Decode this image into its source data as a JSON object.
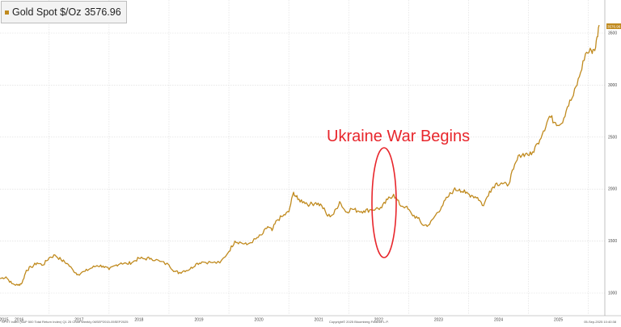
{
  "legend": {
    "name": "Gold Spot $/Oz",
    "value": "3576.96",
    "color": "#c08a1e"
  },
  "annotation": {
    "text": "Ukraine War Begins",
    "color": "#e8262c"
  },
  "footer": {
    "left": "SPXT Index (S&P 500 Total Return Index) Q1 25 Chart  Weekly 06SEP2015-05SEP2025",
    "middle": "Copyright© 2025 Bloomberg Finance L.P.",
    "right": "05-Sep-2025 10:40:38"
  },
  "chart_data": {
    "type": "line",
    "title": "",
    "xlabel": "",
    "ylabel": "",
    "x_tick_labels": [
      "2015",
      "2016",
      "2017",
      "2018",
      "2019",
      "2020",
      "2021",
      "2022",
      "2023",
      "2024",
      "2025"
    ],
    "y_tick_labels": [
      "1000",
      "1500",
      "2000",
      "2500",
      "3000",
      "3500"
    ],
    "ylim": [
      950,
      3600
    ],
    "xlim": [
      2015.68,
      2025.68
    ],
    "grid": true,
    "last_value_label": "3576.96",
    "series": [
      {
        "name": "Gold Spot $/Oz",
        "color": "#c08a1e",
        "x": [
          2015.68,
          2015.78,
          2015.88,
          2015.98,
          2016.05,
          2016.12,
          2016.2,
          2016.3,
          2016.4,
          2016.5,
          2016.6,
          2016.7,
          2016.8,
          2016.9,
          2016.98,
          2017.1,
          2017.2,
          2017.3,
          2017.4,
          2017.5,
          2017.6,
          2017.7,
          2017.8,
          2017.9,
          2018.0,
          2018.1,
          2018.2,
          2018.35,
          2018.5,
          2018.6,
          2018.67,
          2018.75,
          2018.85,
          2018.95,
          2019.05,
          2019.2,
          2019.35,
          2019.5,
          2019.6,
          2019.7,
          2019.8,
          2019.95,
          2020.05,
          2020.15,
          2020.22,
          2020.3,
          2020.4,
          2020.5,
          2020.58,
          2020.65,
          2020.75,
          2020.85,
          2020.95,
          2021.05,
          2021.15,
          2021.25,
          2021.35,
          2021.45,
          2021.55,
          2021.65,
          2021.75,
          2021.85,
          2021.95,
          2022.05,
          2022.15,
          2022.25,
          2022.35,
          2022.45,
          2022.55,
          2022.65,
          2022.75,
          2022.85,
          2022.95,
          2023.05,
          2023.15,
          2023.25,
          2023.35,
          2023.45,
          2023.55,
          2023.65,
          2023.75,
          2023.85,
          2023.95,
          2024.05,
          2024.15,
          2024.25,
          2024.35,
          2024.45,
          2024.55,
          2024.65,
          2024.75,
          2024.85,
          2024.95,
          2025.05,
          2025.15,
          2025.25,
          2025.35,
          2025.45,
          2025.55,
          2025.62,
          2025.68
        ],
        "values": [
          1140,
          1155,
          1090,
          1075,
          1100,
          1220,
          1250,
          1290,
          1270,
          1340,
          1365,
          1320,
          1285,
          1220,
          1180,
          1210,
          1240,
          1265,
          1260,
          1225,
          1265,
          1290,
          1280,
          1300,
          1335,
          1330,
          1335,
          1305,
          1270,
          1210,
          1195,
          1215,
          1230,
          1280,
          1300,
          1295,
          1290,
          1400,
          1500,
          1485,
          1465,
          1520,
          1560,
          1640,
          1600,
          1700,
          1740,
          1780,
          1970,
          1900,
          1880,
          1850,
          1870,
          1840,
          1740,
          1760,
          1880,
          1780,
          1810,
          1790,
          1790,
          1800,
          1810,
          1820,
          1900,
          1950,
          1850,
          1830,
          1760,
          1720,
          1650,
          1660,
          1750,
          1830,
          1920,
          1990,
          2000,
          1960,
          1940,
          1920,
          1840,
          1980,
          2050,
          2060,
          2030,
          2190,
          2330,
          2340,
          2330,
          2440,
          2560,
          2700,
          2640,
          2630,
          2790,
          2900,
          3080,
          3300,
          3330,
          3360,
          3576.96
        ]
      }
    ]
  }
}
